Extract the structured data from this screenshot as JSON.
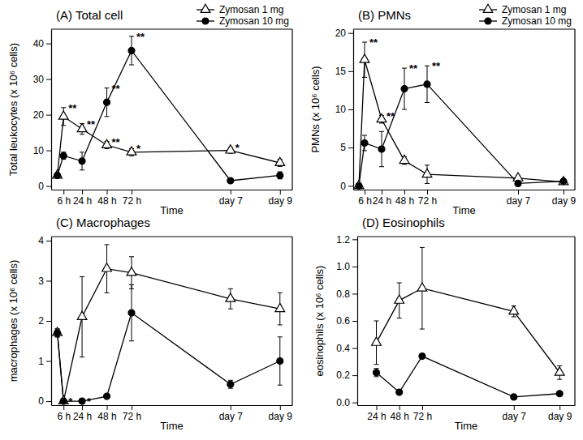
{
  "chart_data": [
    {
      "type": "line",
      "title": "(A) Total cell",
      "x_label": "Time",
      "y_label": "Total leukocytes (x 10⁶ cells)",
      "x": [
        0,
        6,
        24,
        48,
        72,
        168,
        216
      ],
      "xlim": [
        -6,
        228
      ],
      "xticks": [
        {
          "value": 6,
          "label": "6 h"
        },
        {
          "value": 24,
          "label": "24 h"
        },
        {
          "value": 48,
          "label": "48 h"
        },
        {
          "value": 72,
          "label": "72 h"
        },
        {
          "value": 168,
          "label": "day 7"
        },
        {
          "value": 216,
          "label": "day 9"
        }
      ],
      "ylim": [
        -1,
        44
      ],
      "yticks": [
        0,
        10,
        20,
        30,
        40
      ],
      "legend": "upper right",
      "series": [
        {
          "name": "Zymosan 1 mg",
          "color": "#000000",
          "marker": "triangle-open",
          "values": [
            3,
            19.5,
            16,
            11.5,
            9.5,
            10,
            6.5
          ],
          "errors": [
            0.5,
            2.5,
            1.5,
            1,
            1,
            0.8,
            1
          ],
          "annotations": [
            null,
            "**",
            "**",
            "**",
            "*",
            "*",
            null
          ]
        },
        {
          "name": "Zymosan 10 mg",
          "color": "#000000",
          "marker": "circle",
          "values": [
            3,
            8.5,
            7,
            23.5,
            38,
            1.5,
            3
          ],
          "errors": [
            0.5,
            1,
            2.5,
            4,
            4,
            0.4,
            1
          ],
          "annotations": [
            null,
            null,
            null,
            "**",
            "**",
            null,
            null
          ]
        }
      ]
    },
    {
      "type": "line",
      "title": "(B) PMNs",
      "x_label": "Time",
      "y_label": "PMNs (x 10⁶ cells)",
      "x": [
        0,
        6,
        24,
        48,
        72,
        168,
        216
      ],
      "xlim": [
        -6,
        228
      ],
      "xticks": [
        {
          "value": 6,
          "label": "6 h"
        },
        {
          "value": 24,
          "label": "24 h"
        },
        {
          "value": 48,
          "label": "48 h"
        },
        {
          "value": 72,
          "label": "72 h"
        },
        {
          "value": 168,
          "label": "day 7"
        },
        {
          "value": 216,
          "label": "day 9"
        }
      ],
      "ylim": [
        -0.5,
        20.5
      ],
      "yticks": [
        0,
        5,
        10,
        15,
        20
      ],
      "legend": "upper right",
      "series": [
        {
          "name": "Zymosan 1 mg",
          "color": "#000000",
          "marker": "triangle-open",
          "values": [
            0,
            16.5,
            8.7,
            3.3,
            1.5,
            1.0,
            0.5
          ],
          "errors": [
            null,
            2.3,
            0.5,
            0.5,
            1.2,
            0.3,
            0.2
          ],
          "annotations": [
            null,
            "**",
            "**",
            null,
            null,
            null,
            null
          ]
        },
        {
          "name": "Zymosan 10 mg",
          "color": "#000000",
          "marker": "circle",
          "values": [
            0,
            5.6,
            4.8,
            12.7,
            13.3,
            0.3,
            0.6
          ],
          "errors": [
            null,
            1,
            2.3,
            2.7,
            2.4,
            0.2,
            0.2
          ],
          "annotations": [
            null,
            null,
            null,
            "**",
            "**",
            null,
            null
          ]
        }
      ]
    },
    {
      "type": "line",
      "title": "(C) Macrophages",
      "x_label": "Time",
      "y_label": "macrophages (x 10⁶ cells)",
      "x": [
        0,
        6,
        24,
        48,
        72,
        168,
        216
      ],
      "xlim": [
        -6,
        228
      ],
      "xticks": [
        {
          "value": 6,
          "label": "6 h"
        },
        {
          "value": 24,
          "label": "24 h"
        },
        {
          "value": 48,
          "label": "48 h"
        },
        {
          "value": 72,
          "label": "72 h"
        },
        {
          "value": 168,
          "label": "day 7"
        },
        {
          "value": 216,
          "label": "day 9"
        }
      ],
      "ylim": [
        -0.1,
        4.1
      ],
      "yticks": [
        0,
        1,
        2,
        3,
        4
      ],
      "series": [
        {
          "color": "#000000",
          "marker": "triangle-open",
          "values": [
            1.7,
            0,
            2.1,
            3.3,
            3.2,
            2.55,
            2.3
          ],
          "errors": [
            0.1,
            null,
            1.0,
            0.6,
            0.4,
            0.25,
            0.4
          ]
        },
        {
          "color": "#000000",
          "marker": "circle",
          "values": [
            1.7,
            0,
            0,
            0.12,
            2.2,
            0.42,
            1.0
          ],
          "errors": [
            0.1,
            null,
            null,
            0.05,
            0.7,
            0.1,
            0.6
          ],
          "annotations": [
            null,
            "*",
            "*",
            null,
            null,
            null,
            null
          ]
        }
      ]
    },
    {
      "type": "line",
      "title": "(D) Eosinophils",
      "x_label": "Time",
      "y_label": "eosinophils (x 10⁶ cells)",
      "x": [
        24,
        48,
        72,
        168,
        216
      ],
      "xlim": [
        4,
        232
      ],
      "xticks": [
        {
          "value": 24,
          "label": "24 h"
        },
        {
          "value": 48,
          "label": "48 h"
        },
        {
          "value": 72,
          "label": "72 h"
        },
        {
          "value": 168,
          "label": "day 7"
        },
        {
          "value": 216,
          "label": "day 9"
        }
      ],
      "ylim": [
        -0.02,
        1.22
      ],
      "yticks": [
        {
          "value": 0,
          "label": "0.0"
        },
        0.2,
        0.4,
        0.6,
        0.8,
        {
          "value": 1,
          "label": "1.0"
        },
        1.2
      ],
      "series": [
        {
          "color": "#000000",
          "marker": "triangle-open",
          "values": [
            0.44,
            0.75,
            0.84,
            0.67,
            0.22
          ],
          "errors": [
            0.16,
            0.13,
            0.3,
            0.04,
            0.05
          ]
        },
        {
          "color": "#000000",
          "marker": "circle",
          "values": [
            0.22,
            0.075,
            0.34,
            0.04,
            0.065
          ],
          "errors": [
            0.03,
            null,
            null,
            null,
            null
          ]
        }
      ]
    }
  ]
}
